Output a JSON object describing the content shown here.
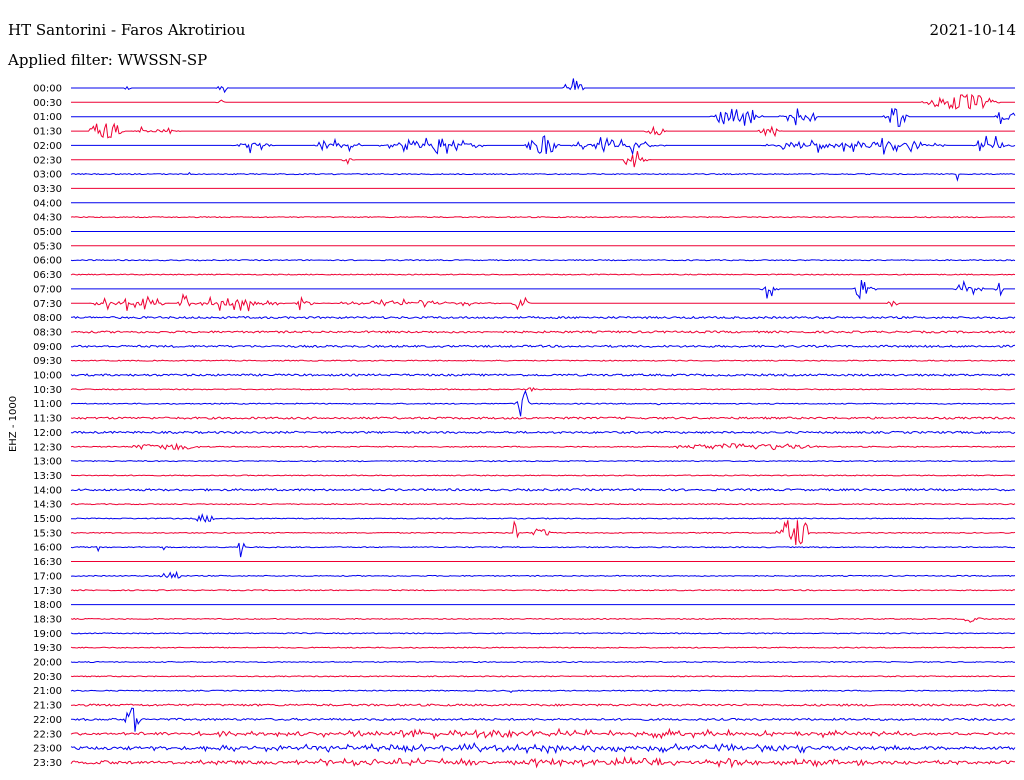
{
  "header": {
    "station": "HT Santorini - Faros Akrotiriou",
    "date": "2021-10-14",
    "filter": "Applied filter: WWSSN-SP"
  },
  "channel_label": "EHZ - 1000",
  "colors": {
    "even_row": "#0000ee",
    "odd_row": "#ee0033"
  },
  "chart_data": {
    "type": "line",
    "title": "HT Santorini - Faros Akrotiriou",
    "subtitle": "Applied filter: WWSSN-SP",
    "ylabel": "EHZ - 1000",
    "x_unit": "minutes",
    "xlim": [
      0,
      30
    ],
    "row_labels": [
      "00:00",
      "00:30",
      "01:00",
      "01:30",
      "02:00",
      "02:30",
      "03:00",
      "03:30",
      "04:00",
      "04:30",
      "05:00",
      "05:30",
      "06:00",
      "06:30",
      "07:00",
      "07:30",
      "08:00",
      "08:30",
      "09:00",
      "09:30",
      "10:00",
      "10:30",
      "11:00",
      "11:30",
      "12:00",
      "12:30",
      "13:00",
      "13:30",
      "14:00",
      "14:30",
      "15:00",
      "15:30",
      "16:00",
      "16:30",
      "17:00",
      "17:30",
      "18:00",
      "18:30",
      "19:00",
      "19:30",
      "20:00",
      "20:30",
      "21:00",
      "21:30",
      "22:00",
      "22:30",
      "23:00",
      "23:30"
    ],
    "row_noise": [
      0,
      0,
      0,
      0,
      0,
      0,
      1,
      0,
      0,
      1,
      0,
      0,
      1,
      1,
      0,
      0,
      2,
      2,
      2,
      1,
      2,
      1,
      1,
      2,
      2,
      1,
      1,
      1,
      2,
      1,
      1,
      1,
      1,
      0,
      1,
      1,
      0,
      1,
      1,
      1,
      1,
      1,
      1,
      2,
      2,
      2,
      3,
      3
    ],
    "events": [
      {
        "row": 0,
        "start": 1.7,
        "end": 1.9,
        "amp": 9,
        "dense": false
      },
      {
        "row": 0,
        "start": 4.6,
        "end": 5.0,
        "amp": 10,
        "dense": false
      },
      {
        "row": 0,
        "start": 15.6,
        "end": 16.3,
        "amp": 10,
        "dense": false
      },
      {
        "row": 1,
        "start": 4.6,
        "end": 4.9,
        "amp": 5,
        "dense": false
      },
      {
        "row": 2,
        "start": 20.3,
        "end": 22.0,
        "amp": 10,
        "dense": true
      },
      {
        "row": 2,
        "start": 22.5,
        "end": 23.8,
        "amp": 10,
        "dense": false
      },
      {
        "row": 2,
        "start": 25.8,
        "end": 26.6,
        "amp": 10,
        "dense": true
      },
      {
        "row": 2,
        "start": 29.3,
        "end": 30.0,
        "amp": 10,
        "dense": true
      },
      {
        "row": 1,
        "start": 27.0,
        "end": 29.5,
        "amp": 8,
        "dense": true
      },
      {
        "row": 3,
        "start": 0.5,
        "end": 1.7,
        "amp": 9,
        "dense": true
      },
      {
        "row": 3,
        "start": 1.9,
        "end": 3.5,
        "amp": 6,
        "dense": false
      },
      {
        "row": 3,
        "start": 18.2,
        "end": 18.9,
        "amp": 4,
        "dense": true
      },
      {
        "row": 3,
        "start": 21.8,
        "end": 22.6,
        "amp": 5,
        "dense": true
      },
      {
        "row": 4,
        "start": 5.1,
        "end": 6.5,
        "amp": 9,
        "dense": false
      },
      {
        "row": 4,
        "start": 7.7,
        "end": 9.3,
        "amp": 9,
        "dense": false
      },
      {
        "row": 4,
        "start": 9.8,
        "end": 13.2,
        "amp": 9,
        "dense": false
      },
      {
        "row": 4,
        "start": 14.4,
        "end": 15.5,
        "amp": 10,
        "dense": true
      },
      {
        "row": 4,
        "start": 15.7,
        "end": 18.9,
        "amp": 9,
        "dense": false
      },
      {
        "row": 4,
        "start": 21.9,
        "end": 27.8,
        "amp": 10,
        "dense": false
      },
      {
        "row": 4,
        "start": 28.6,
        "end": 30.0,
        "amp": 10,
        "dense": false
      },
      {
        "row": 5,
        "start": 8.6,
        "end": 9.0,
        "amp": 8,
        "dense": false
      },
      {
        "row": 5,
        "start": 17.5,
        "end": 18.4,
        "amp": 10,
        "dense": false
      },
      {
        "row": 6,
        "start": 3.7,
        "end": 3.8,
        "amp": 7,
        "dense": false
      },
      {
        "row": 6,
        "start": 28.1,
        "end": 28.2,
        "amp": 7,
        "dense": false
      },
      {
        "row": 14,
        "start": 21.8,
        "end": 22.5,
        "amp": 10,
        "dense": false
      },
      {
        "row": 14,
        "start": 24.8,
        "end": 25.6,
        "amp": 10,
        "dense": false
      },
      {
        "row": 14,
        "start": 28.0,
        "end": 29.0,
        "amp": 10,
        "dense": false
      },
      {
        "row": 14,
        "start": 29.3,
        "end": 29.6,
        "amp": 10,
        "dense": false
      },
      {
        "row": 15,
        "start": 0.6,
        "end": 3.1,
        "amp": 8,
        "dense": false
      },
      {
        "row": 15,
        "start": 3.4,
        "end": 3.8,
        "amp": 10,
        "dense": true
      },
      {
        "row": 15,
        "start": 3.8,
        "end": 6.8,
        "amp": 8,
        "dense": false
      },
      {
        "row": 15,
        "start": 7.0,
        "end": 7.8,
        "amp": 9,
        "dense": false
      },
      {
        "row": 15,
        "start": 7.8,
        "end": 13.7,
        "amp": 4,
        "dense": false
      },
      {
        "row": 15,
        "start": 14.0,
        "end": 14.6,
        "amp": 9,
        "dense": false
      },
      {
        "row": 15,
        "start": 25.9,
        "end": 26.3,
        "amp": 3,
        "dense": true
      },
      {
        "row": 22,
        "start": 14.1,
        "end": 14.6,
        "amp": 14,
        "dense": true
      },
      {
        "row": 22,
        "start": 18.6,
        "end": 18.7,
        "amp": 10,
        "dense": false
      },
      {
        "row": 21,
        "start": 14.5,
        "end": 14.7,
        "amp": 10,
        "dense": false
      },
      {
        "row": 25,
        "start": 1.7,
        "end": 4.3,
        "amp": 3,
        "dense": true
      },
      {
        "row": 25,
        "start": 18.8,
        "end": 24.0,
        "amp": 3,
        "dense": true
      },
      {
        "row": 29,
        "start": 23.6,
        "end": 23.7,
        "amp": 9,
        "dense": false
      },
      {
        "row": 30,
        "start": 3.9,
        "end": 4.6,
        "amp": 4,
        "dense": true
      },
      {
        "row": 31,
        "start": 14.0,
        "end": 14.2,
        "amp": 13,
        "dense": true
      },
      {
        "row": 31,
        "start": 14.5,
        "end": 15.3,
        "amp": 4,
        "dense": true
      },
      {
        "row": 31,
        "start": 22.4,
        "end": 23.5,
        "amp": 16,
        "dense": true
      },
      {
        "row": 32,
        "start": 0.8,
        "end": 0.9,
        "amp": 8,
        "dense": false
      },
      {
        "row": 32,
        "start": 2.9,
        "end": 3.0,
        "amp": 10,
        "dense": false
      },
      {
        "row": 32,
        "start": 5.3,
        "end": 5.5,
        "amp": 15,
        "dense": true
      },
      {
        "row": 34,
        "start": 2.8,
        "end": 3.6,
        "amp": 5,
        "dense": true
      },
      {
        "row": 37,
        "start": 28.3,
        "end": 29.0,
        "amp": 3,
        "dense": true
      },
      {
        "row": 42,
        "start": 13.9,
        "end": 14.0,
        "amp": 7,
        "dense": false
      },
      {
        "row": 44,
        "start": 1.7,
        "end": 2.2,
        "amp": 13,
        "dense": true
      },
      {
        "row": 45,
        "start": 0.0,
        "end": 30.0,
        "amp": 4,
        "dense": false
      },
      {
        "row": 46,
        "start": 0.0,
        "end": 30.0,
        "amp": 4,
        "dense": false
      },
      {
        "row": 47,
        "start": 0.0,
        "end": 30.0,
        "amp": 4,
        "dense": false
      }
    ]
  }
}
